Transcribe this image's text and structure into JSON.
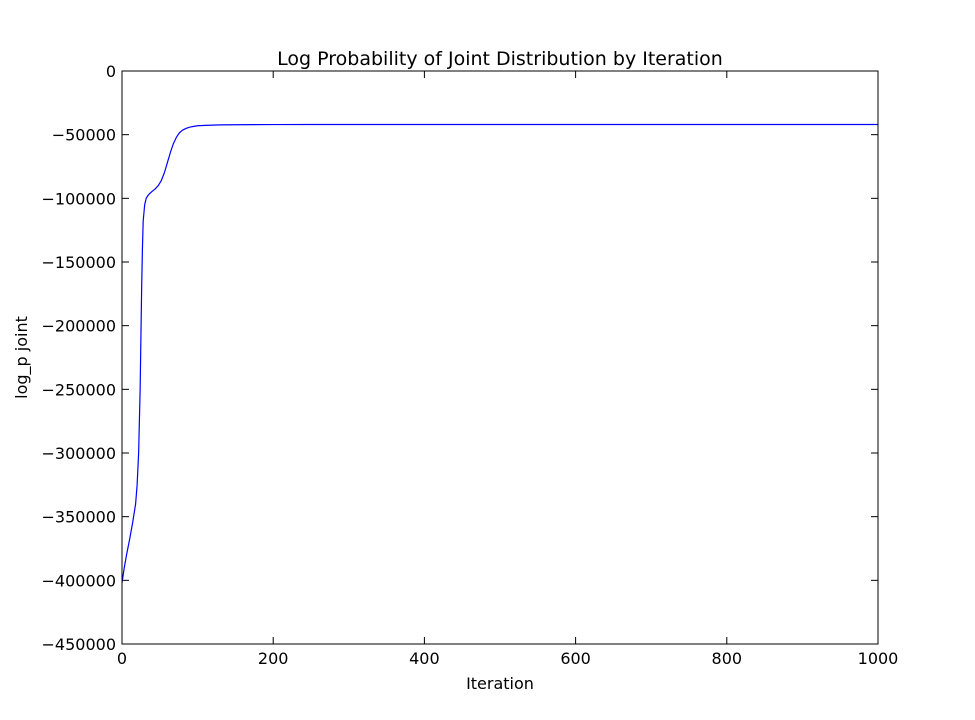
{
  "chart_data": {
    "type": "line",
    "title": "Log Probability of Joint Distribution by Iteration",
    "xlabel": "Iteration",
    "ylabel": "log_p joint",
    "xlim": [
      0,
      1000
    ],
    "ylim": [
      -450000,
      0
    ],
    "grid": false,
    "legend": "none",
    "x_ticks": [
      0,
      200,
      400,
      600,
      800,
      1000
    ],
    "y_ticks": [
      0,
      -50000,
      -100000,
      -150000,
      -200000,
      -250000,
      -300000,
      -350000,
      -400000,
      -450000
    ],
    "x_tick_labels": [
      "0",
      "200",
      "400",
      "600",
      "800",
      "1000"
    ],
    "y_tick_labels": [
      "0",
      "−50000",
      "−100000",
      "−150000",
      "−200000",
      "−250000",
      "−300000",
      "−350000",
      "−400000",
      "−450000"
    ],
    "series": [
      {
        "color": "#0000ff",
        "x": [
          0,
          3,
          6,
          10,
          14,
          18,
          20,
          22,
          24,
          25,
          26,
          27,
          28,
          30,
          32,
          34,
          37,
          40,
          44,
          48,
          52,
          56,
          60,
          64,
          68,
          72,
          76,
          80,
          85,
          90,
          95,
          100,
          110,
          120,
          130,
          150,
          175,
          200,
          250,
          300,
          400,
          500,
          600,
          700,
          800,
          900,
          1000
        ],
        "y": [
          -402000,
          -390000,
          -380000,
          -368000,
          -355000,
          -340000,
          -325000,
          -300000,
          -250000,
          -210000,
          -170000,
          -140000,
          -118000,
          -105000,
          -100000,
          -98000,
          -96000,
          -94500,
          -92500,
          -90000,
          -86000,
          -80000,
          -72000,
          -64000,
          -57000,
          -52000,
          -48500,
          -46500,
          -45000,
          -44000,
          -43500,
          -43000,
          -42700,
          -42500,
          -42300,
          -42200,
          -42100,
          -42050,
          -42000,
          -42000,
          -42000,
          -42000,
          -42000,
          -42000,
          -42000,
          -42000,
          -42000
        ]
      }
    ]
  }
}
